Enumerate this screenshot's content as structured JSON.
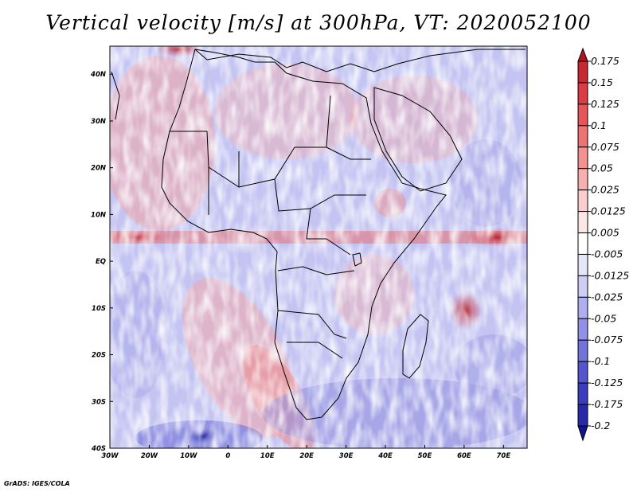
{
  "title": "Vertical velocity [m/s] at 300hPa, VT: 2020052100",
  "footer": "GrADS: IGES/COLA",
  "map": {
    "region": "Africa and surrounding oceans",
    "lon_range": [
      -30,
      76
    ],
    "lat_range": [
      -40,
      46
    ],
    "x_ticks": [
      {
        "value": -30,
        "label": "30W"
      },
      {
        "value": -20,
        "label": "20W"
      },
      {
        "value": -10,
        "label": "10W"
      },
      {
        "value": 0,
        "label": "0"
      },
      {
        "value": 10,
        "label": "10E"
      },
      {
        "value": 20,
        "label": "20E"
      },
      {
        "value": 30,
        "label": "30E"
      },
      {
        "value": 40,
        "label": "40E"
      },
      {
        "value": 50,
        "label": "50E"
      },
      {
        "value": 60,
        "label": "60E"
      },
      {
        "value": 70,
        "label": "70E"
      }
    ],
    "y_ticks": [
      {
        "value": 40,
        "label": "40N"
      },
      {
        "value": 30,
        "label": "30N"
      },
      {
        "value": 20,
        "label": "20N"
      },
      {
        "value": 10,
        "label": "10N"
      },
      {
        "value": 0,
        "label": "EQ"
      },
      {
        "value": -10,
        "label": "10S"
      },
      {
        "value": -20,
        "label": "20S"
      },
      {
        "value": -30,
        "label": "30S"
      },
      {
        "value": -40,
        "label": "40S"
      }
    ]
  },
  "colorbar": {
    "levels": [
      "0.175",
      "0.15",
      "0.125",
      "0.1",
      "0.075",
      "0.05",
      "0.025",
      "0.0125",
      "0.005",
      "-0.005",
      "-0.0125",
      "-0.025",
      "-0.05",
      "-0.075",
      "-0.1",
      "-0.125",
      "-0.175",
      "-0.2"
    ],
    "colors": [
      "#b4141e",
      "#c82832",
      "#dc3c46",
      "#e6555a",
      "#ee7373",
      "#f49191",
      "#f8afaf",
      "#fbcdcd",
      "#fde6e6",
      "#ffffff",
      "#e6e6fb",
      "#cdcdf5",
      "#afafef",
      "#9191e6",
      "#7373dc",
      "#5555cd",
      "#3c3cbe",
      "#2828aa",
      "#14148c"
    ]
  }
}
